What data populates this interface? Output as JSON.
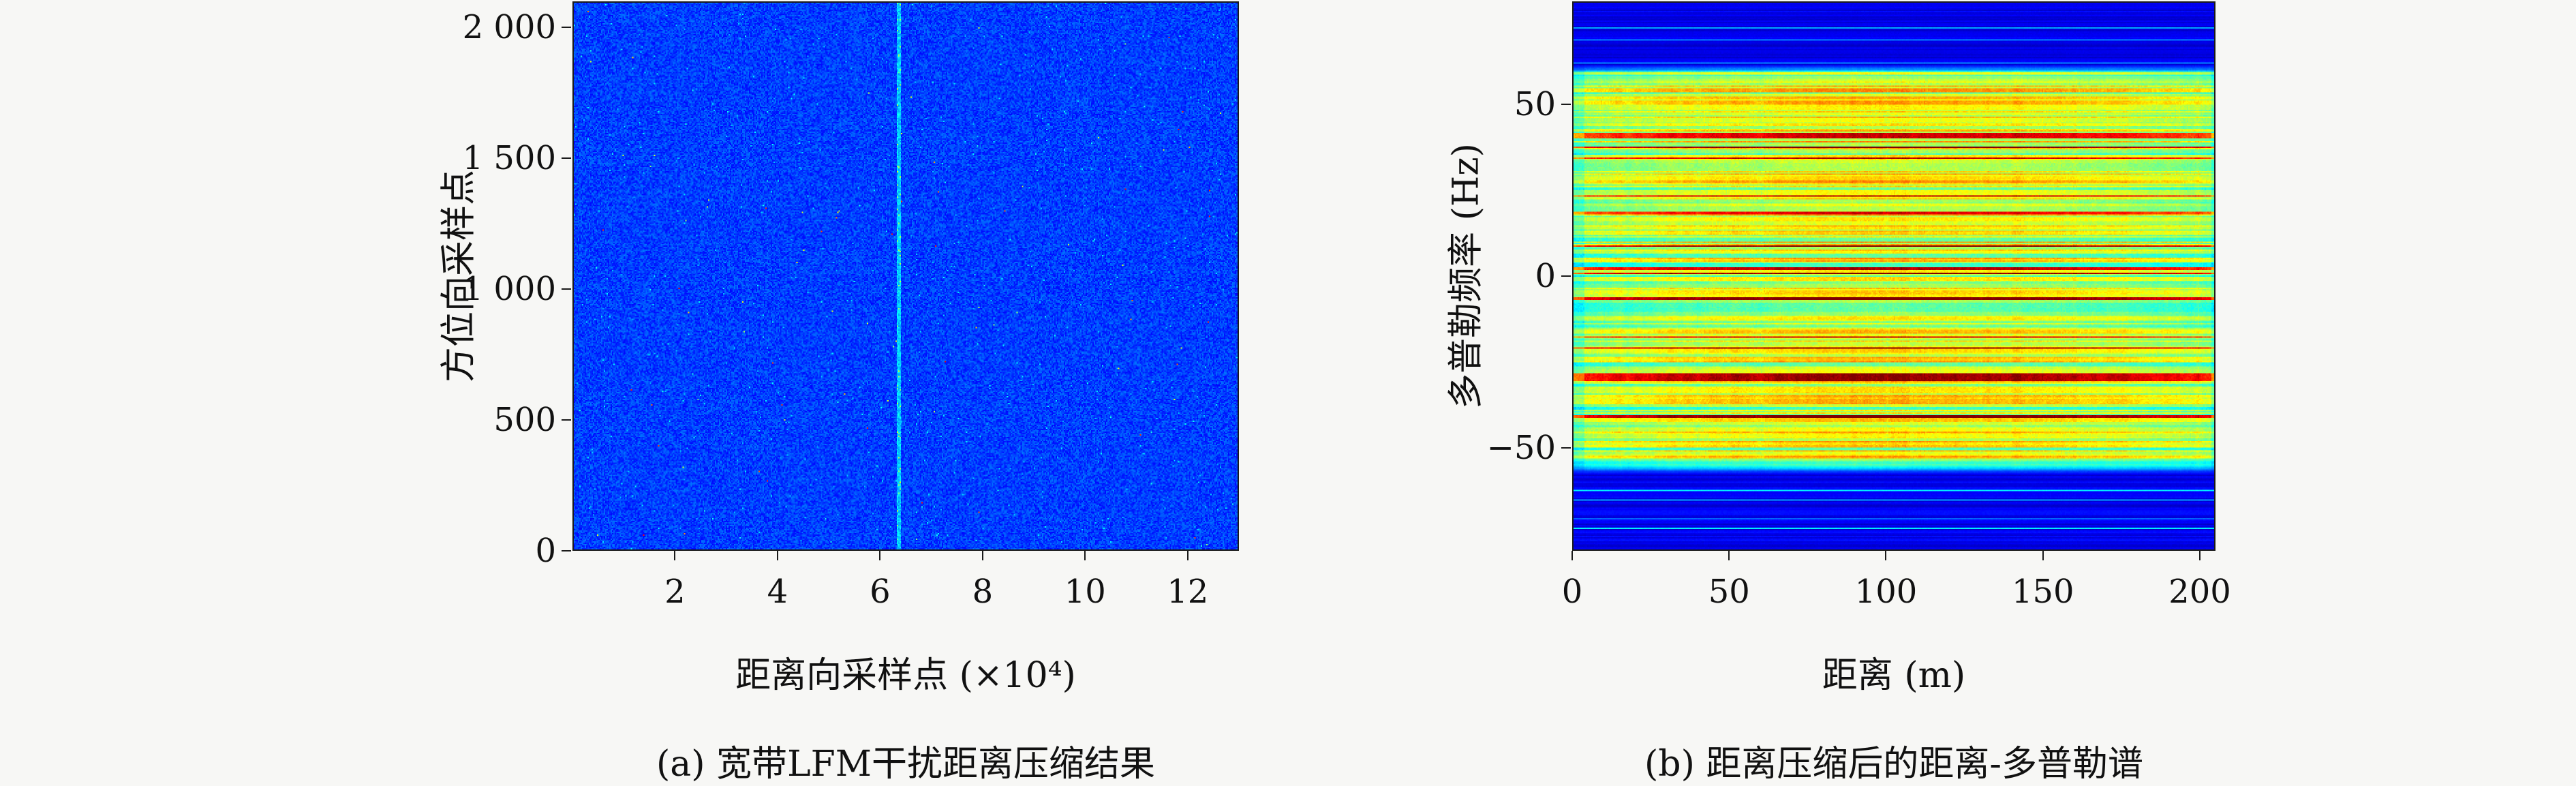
{
  "figure": {
    "background_color": "#f7f7f5",
    "text_color": "#111111"
  },
  "chart_data": [
    {
      "type": "heatmap",
      "caption": "(a) 宽带LFM干扰距离压缩结果",
      "xlabel": "距离向采样点 (×10⁴)",
      "ylabel": "方位向采样点",
      "xlim": [
        0,
        13
      ],
      "ylim": [
        0,
        2100
      ],
      "xticks": [
        2,
        4,
        6,
        8,
        10,
        12
      ],
      "xtick_labels": [
        "2",
        "4",
        "6",
        "8",
        "10",
        "12"
      ],
      "yticks": [
        0,
        500,
        1000,
        1500,
        2000
      ],
      "ytick_labels": [
        "0",
        "500",
        "1 000",
        "1 500",
        "2 000"
      ],
      "colormap": "jet",
      "legend": "none",
      "grid": false,
      "content": {
        "kind": "blue-noise",
        "description": "uniform dark/royal blue speckle noise covering whole plot; faint lighter cyan vertical stripe at x≈6.35×10⁴ with a few bright specks along it; extremely rare warm-colored specks",
        "base_value_range": [
          0.13,
          0.24
        ],
        "cyan_speck_probability": 0.004,
        "warm_speck_probability": 0.0005,
        "vertical_stripe": {
          "x_value": 6.35,
          "value_boost": 0.11
        },
        "seed": 42
      }
    },
    {
      "type": "heatmap",
      "caption": "(b) 距离压缩后的距离-多普勒谱",
      "xlabel": "距离 (m)",
      "ylabel": "多普勒频率 (Hz)",
      "xlim": [
        0,
        205
      ],
      "ylim": [
        -80,
        80
      ],
      "xticks": [
        0,
        50,
        100,
        150,
        200
      ],
      "xtick_labels": [
        "0",
        "50",
        "100",
        "150",
        "200"
      ],
      "yticks": [
        -50,
        0,
        50
      ],
      "ytick_labels": [
        "−50",
        "0",
        "50"
      ],
      "colormap": "jet",
      "legend": "none",
      "grid": false,
      "content": {
        "kind": "doppler-band-stripes",
        "description": "horizontal jet-colored stripes (green/yellow with scattered red-orange and cyan lines) filling the Doppler band between about −58 Hz and +62 Hz across the full range axis; dark blue background with a few faint lighter blue lines outside the band; slightly brighter toward range center, slightly cyan at the left edge",
        "band_hz": [
          -58,
          62
        ],
        "edge_fade_hz": 5,
        "red_row_probability": 0.1,
        "cyan_row_probability": 0.16,
        "main_row_value_range": [
          0.52,
          0.72
        ],
        "background_value_range": [
          0.07,
          0.14
        ],
        "seed": 7
      }
    }
  ]
}
